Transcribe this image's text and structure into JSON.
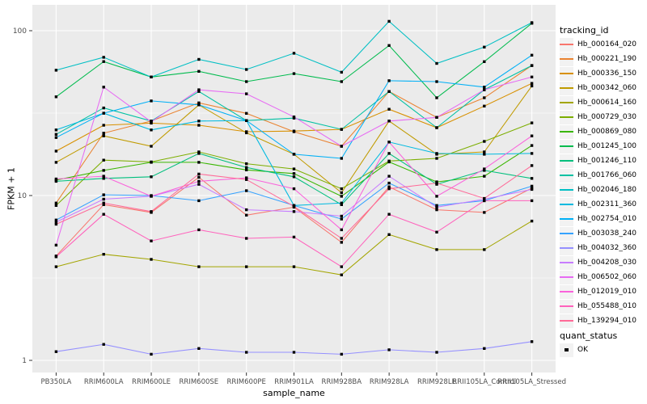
{
  "figure": {
    "background": "#FFFFFF",
    "panel_background": "#EBEBEB",
    "grid_color": "#FFFFFF",
    "axis_text_color": "#4D4D4D",
    "tick_color": "#333333",
    "marker_color": "#000000"
  },
  "axes": {
    "x_title": "sample_name",
    "y_title": "FPKM + 1",
    "y_ticks": [
      1,
      10,
      100
    ],
    "y_tick_labels": [
      "1",
      "10",
      "100"
    ],
    "y_minor": [
      3.1623,
      31.623
    ]
  },
  "legend": {
    "title": "tracking_id"
  },
  "legend2": {
    "title": "quant_status",
    "items": [
      {
        "label": "OK",
        "marker": "black-square-icon"
      }
    ]
  },
  "chart_data": {
    "type": "line",
    "title": "",
    "xlabel": "sample_name",
    "ylabel": "FPKM + 1",
    "y_scale": "log10",
    "ylim": [
      0.84,
      140
    ],
    "grid": true,
    "legend_position": "right",
    "point_marker": "black-square",
    "categories": [
      "PB350LA",
      "RRIM600LA",
      "RRIM600LE",
      "RRIM600SE",
      "RRIM600PE",
      "RRIM901LA",
      "RRIM928BA",
      "RRIM928LA",
      "RRIM928LE",
      "RRII105LA_Control",
      "RRII105LA_Stressed"
    ],
    "series": [
      {
        "name": "Hb_000164_020",
        "color": "#F8766D",
        "values": [
          4.3,
          8.8,
          7.9,
          12.9,
          7.6,
          8.5,
          5.2,
          11.3,
          8.2,
          7.9,
          11.1
        ]
      },
      {
        "name": "Hb_000221_190",
        "color": "#EA8331",
        "values": [
          9.0,
          23.9,
          28.3,
          36.5,
          31.5,
          24.4,
          19.9,
          42.8,
          29.8,
          39.2,
          61.5
        ]
      },
      {
        "name": "Hb_000336_150",
        "color": "#D89000",
        "values": [
          18.6,
          26.7,
          27.5,
          26.7,
          24.4,
          24.6,
          25.2,
          33.4,
          25.8,
          34.9,
          47.9
        ]
      },
      {
        "name": "Hb_000342_060",
        "color": "#C09B00",
        "values": [
          15.9,
          23.0,
          19.9,
          35.5,
          24.0,
          17.8,
          10.4,
          28.3,
          17.8,
          18.4,
          46.2
        ]
      },
      {
        "name": "Hb_000614_160",
        "color": "#A3A500",
        "values": [
          3.7,
          4.4,
          4.1,
          3.7,
          3.7,
          3.7,
          3.3,
          5.8,
          4.7,
          4.7,
          7.0
        ]
      },
      {
        "name": "Hb_000729_030",
        "color": "#7CAE00",
        "values": [
          8.7,
          16.4,
          16.0,
          18.4,
          15.6,
          14.5,
          11.0,
          16.2,
          16.8,
          21.3,
          27.6
        ]
      },
      {
        "name": "Hb_000869_080",
        "color": "#39B600",
        "values": [
          12.4,
          14.2,
          15.9,
          15.9,
          14.3,
          13.6,
          9.9,
          16.0,
          12.1,
          13.1,
          20.1
        ]
      },
      {
        "name": "Hb_001245_100",
        "color": "#00BB4E",
        "values": [
          39.7,
          65.0,
          52.4,
          56.7,
          49.1,
          54.9,
          49.1,
          81.3,
          39.2,
          64.9,
          111.0
        ]
      },
      {
        "name": "Hb_001246_110",
        "color": "#00BF7D",
        "values": [
          12.2,
          12.7,
          13.0,
          18.0,
          14.8,
          13.0,
          8.8,
          18.0,
          11.7,
          14.2,
          12.7
        ]
      },
      {
        "name": "Hb_001766_060",
        "color": "#00C1A3",
        "values": [
          23.5,
          34.0,
          28.3,
          42.8,
          28.5,
          29.5,
          25.2,
          42.8,
          25.8,
          43.8,
          61.5
        ]
      },
      {
        "name": "Hb_002046_180",
        "color": "#00BFC4",
        "values": [
          57.6,
          69.0,
          52.4,
          67.0,
          58.2,
          73.0,
          56.0,
          114.0,
          63.3,
          79.5,
          112.0
        ]
      },
      {
        "name": "Hb_002311_360",
        "color": "#00BAE0",
        "values": [
          25.0,
          31.6,
          25.0,
          28.3,
          28.5,
          8.7,
          9.0,
          21.1,
          18.0,
          17.8,
          18.0
        ]
      },
      {
        "name": "Hb_002754_010",
        "color": "#00B0F6",
        "values": [
          22.5,
          31.6,
          37.5,
          35.5,
          28.5,
          17.8,
          16.8,
          49.7,
          49.1,
          45.5,
          71.0
        ]
      },
      {
        "name": "Hb_003038_240",
        "color": "#35A2FF",
        "values": [
          7.1,
          10.1,
          10.0,
          9.3,
          10.7,
          8.7,
          7.2,
          11.9,
          8.7,
          9.3,
          11.4
        ]
      },
      {
        "name": "Hb_004032_360",
        "color": "#9590FF",
        "values": [
          1.13,
          1.25,
          1.09,
          1.18,
          1.12,
          1.12,
          1.09,
          1.16,
          1.12,
          1.18,
          1.3
        ]
      },
      {
        "name": "Hb_004208_030",
        "color": "#C77CFF",
        "values": [
          6.9,
          9.5,
          9.9,
          11.7,
          8.2,
          8.0,
          7.5,
          13.1,
          8.5,
          9.5,
          10.9
        ]
      },
      {
        "name": "Hb_006502_060",
        "color": "#E76BF3",
        "values": [
          5.0,
          45.5,
          28.0,
          43.8,
          41.4,
          30.0,
          19.9,
          28.3,
          29.8,
          43.8,
          52.4
        ]
      },
      {
        "name": "Hb_012019_010",
        "color": "#FA62DB",
        "values": [
          12.6,
          13.1,
          9.9,
          12.2,
          12.8,
          11.0,
          6.2,
          21.1,
          9.9,
          14.5,
          23.0
        ]
      },
      {
        "name": "Hb_055488_010",
        "color": "#FF62BC",
        "values": [
          4.25,
          7.7,
          5.3,
          6.2,
          5.5,
          5.6,
          3.7,
          7.7,
          6.0,
          9.3,
          9.3
        ]
      },
      {
        "name": "Hb_139294_010",
        "color": "#FF6A98",
        "values": [
          6.7,
          9.0,
          8.0,
          13.5,
          12.5,
          8.6,
          5.5,
          11.0,
          11.9,
          9.6,
          15.2
        ]
      }
    ]
  }
}
